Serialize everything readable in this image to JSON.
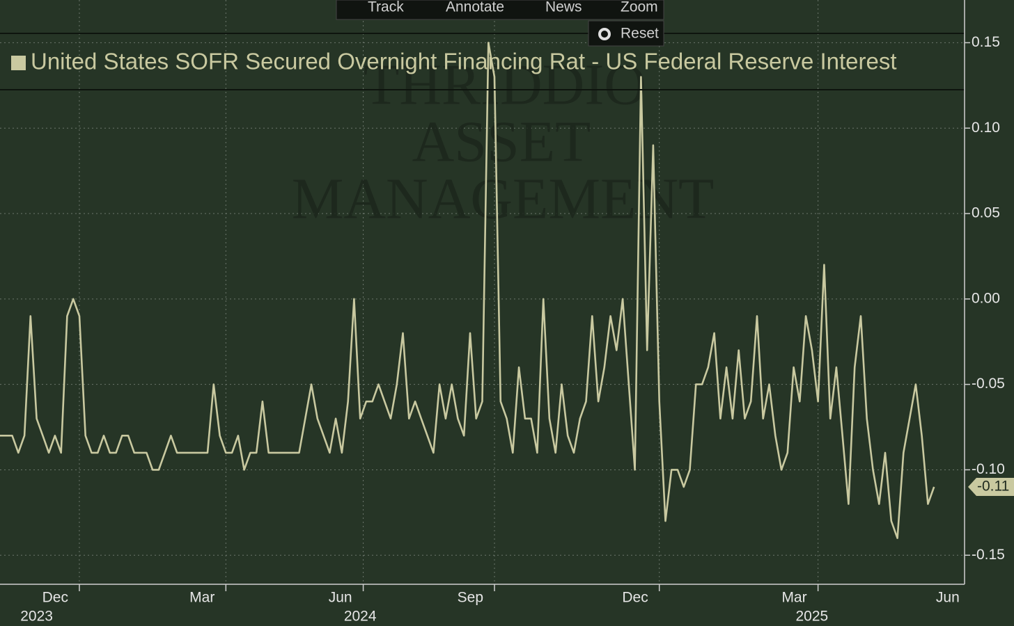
{
  "toolbar": [
    "Track",
    "Annotate",
    "News",
    "Zoom",
    "Reset"
  ],
  "watermark": [
    "THRIDDIO",
    "ASSET",
    "MANAGEMENT"
  ],
  "chart_data": {
    "type": "line",
    "series": [
      {
        "name": "United States SOFR Secured Overnight Financing Rat - US Federal Reserve Interest",
        "color": "#c9c9a0",
        "values": [
          -0.08,
          -0.08,
          -0.08,
          -0.09,
          -0.08,
          -0.01,
          -0.07,
          -0.08,
          -0.09,
          -0.08,
          -0.09,
          -0.01,
          0,
          -0.01,
          -0.08,
          -0.09,
          -0.09,
          -0.08,
          -0.09,
          -0.09,
          -0.08,
          -0.08,
          -0.09,
          -0.09,
          -0.09,
          -0.1,
          -0.1,
          -0.09,
          -0.08,
          -0.09,
          -0.09,
          -0.09,
          -0.09,
          -0.09,
          -0.09,
          -0.05,
          -0.08,
          -0.09,
          -0.09,
          -0.08,
          -0.1,
          -0.09,
          -0.09,
          -0.06,
          -0.09,
          -0.09,
          -0.09,
          -0.09,
          -0.09,
          -0.09,
          -0.07,
          -0.05,
          -0.07,
          -0.08,
          -0.09,
          -0.07,
          -0.09,
          -0.06,
          0,
          -0.07,
          -0.06,
          -0.06,
          -0.05,
          -0.06,
          -0.07,
          -0.05,
          -0.02,
          -0.07,
          -0.06,
          -0.07,
          -0.08,
          -0.09,
          -0.05,
          -0.07,
          -0.05,
          -0.07,
          -0.08,
          -0.02,
          -0.07,
          -0.06,
          0.15,
          0.13,
          -0.06,
          -0.07,
          -0.09,
          -0.04,
          -0.07,
          -0.07,
          -0.09,
          0,
          -0.07,
          -0.09,
          -0.05,
          -0.08,
          -0.09,
          -0.07,
          -0.06,
          -0.01,
          -0.06,
          -0.04,
          -0.01,
          -0.03,
          0,
          -0.05,
          -0.1,
          0.13,
          -0.03,
          0.09,
          -0.06,
          -0.13,
          -0.1,
          -0.1,
          -0.11,
          -0.1,
          -0.05,
          -0.05,
          -0.04,
          -0.02,
          -0.07,
          -0.04,
          -0.07,
          -0.03,
          -0.07,
          -0.06,
          -0.01,
          -0.07,
          -0.05,
          -0.08,
          -0.1,
          -0.09,
          -0.04,
          -0.06,
          -0.01,
          -0.03,
          -0.06,
          0.02,
          -0.07,
          -0.04,
          -0.08,
          -0.12,
          -0.04,
          -0.01,
          -0.07,
          -0.1,
          -0.12,
          -0.09,
          -0.13,
          -0.14,
          -0.09,
          -0.07,
          -0.05,
          -0.08,
          -0.12,
          -0.11
        ],
        "last_value_label": "-0.11"
      }
    ],
    "xlim": [
      0,
      158
    ],
    "xticks": [
      {
        "value": 13,
        "label": "Dec"
      },
      {
        "value": 37,
        "label": "Mar"
      },
      {
        "value": 59.5,
        "label": "Jun"
      },
      {
        "value": 81,
        "label": "Sep"
      },
      {
        "value": 108,
        "label": "Dec"
      },
      {
        "value": 134,
        "label": "Mar"
      },
      {
        "value": 159,
        "label": "Jun"
      }
    ],
    "year_labels": [
      {
        "value": 6,
        "label": "2023"
      },
      {
        "value": 59,
        "label": "2024"
      },
      {
        "value": 133,
        "label": "2025"
      }
    ],
    "ylim": [
      -0.167,
      0.175
    ],
    "yticks": [
      0.15,
      {
        "value": 0.1,
        "label": "0.10"
      },
      0.05,
      {
        "value": 0,
        "label": "0.00"
      },
      -0.05,
      {
        "value": -0.1,
        "label": "-0.10"
      },
      -0.15
    ],
    "grid": true
  }
}
